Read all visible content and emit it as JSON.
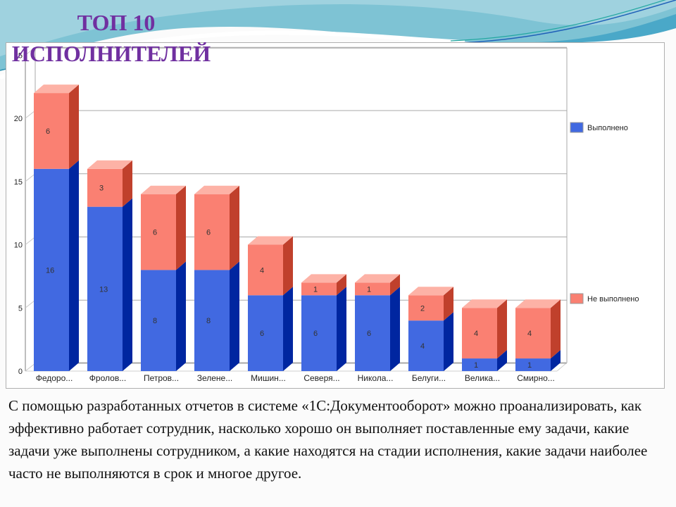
{
  "slide": {
    "title_line1": "ТОП 10",
    "title_line2": "ИСПОЛНИТЕЛЕЙ",
    "body_text": "С помощью разработанных отчетов в системе «1С:Документооборот» можно проанализировать, как эффективно работает сотрудник, насколько хорошо он выполняет поставленные ему задачи, какие задачи уже выполнены сотрудником, а какие находятся на стадии исполнения, какие задачи наиболее часто не выполняются в срок и многое другое."
  },
  "colors": {
    "title": "#7030a0",
    "done_front": "#4169e1",
    "done_side": "#0026a0",
    "notdone_front": "#fa8072",
    "notdone_side": "#c0402c",
    "notdone_top": "#fdb2a6",
    "gridline": "#a8a8a8"
  },
  "chart_data": {
    "type": "bar",
    "stacked": true,
    "three_d": true,
    "title": "ТОП 10 ИСПОЛНИТЕЛЕЙ",
    "xlabel": "",
    "ylabel": "",
    "ylim": [
      0,
      25
    ],
    "yticks": [
      0,
      5,
      10,
      15,
      20,
      25
    ],
    "grid": true,
    "legend_position": "right",
    "categories": [
      "Федоро...",
      "Фролов...",
      "Петров...",
      "Зелене...",
      "Мишин...",
      "Северя...",
      "Никола...",
      "Белуги...",
      "Велика...",
      "Смирно..."
    ],
    "series": [
      {
        "name": "Выполнено",
        "color": "#4169e1",
        "values": [
          16,
          13,
          8,
          8,
          6,
          6,
          6,
          4,
          1,
          1
        ]
      },
      {
        "name": "Не выполнено",
        "color": "#fa8072",
        "values": [
          6,
          3,
          6,
          6,
          4,
          1,
          1,
          2,
          4,
          4
        ]
      }
    ]
  }
}
